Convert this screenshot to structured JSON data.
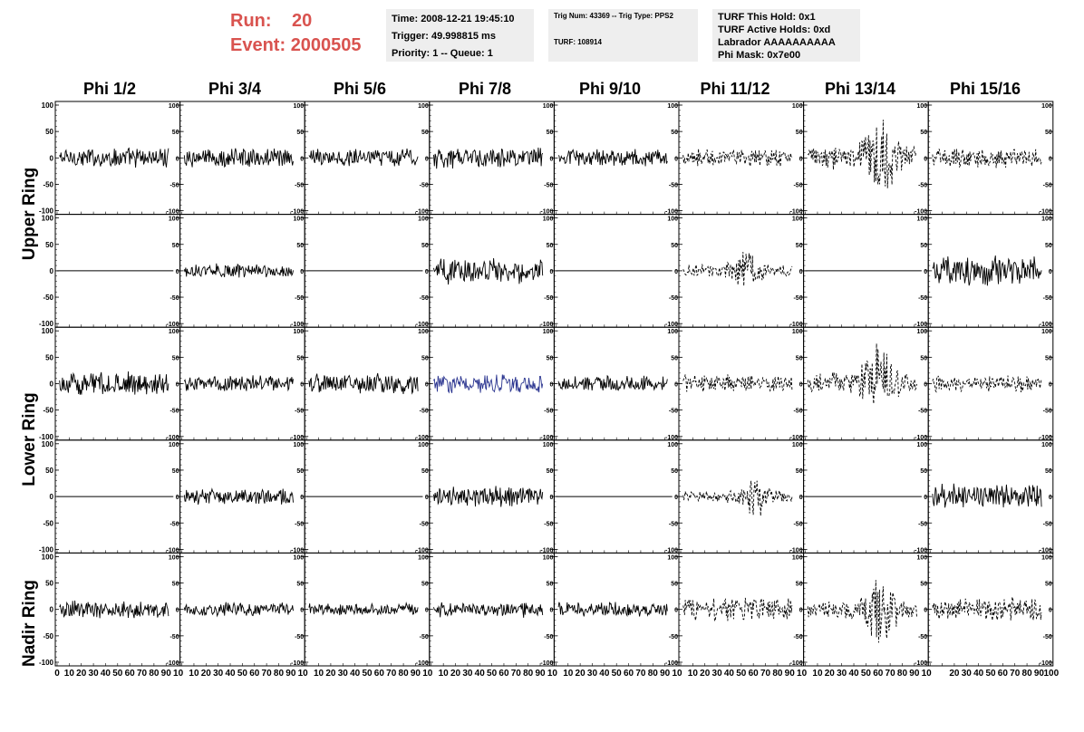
{
  "header": {
    "run_label": "Run:",
    "run_value": "20",
    "event_label": "Event:",
    "event_value": "2000505",
    "time": "Time: 2008-12-21 19:45:10",
    "trigger": "Trigger: 49.998815 ms",
    "priority": "Priority: 1 -- Queue: 1",
    "trig_num": "Trig Num: 43369 -- Trig Type: PPS2",
    "turf": "TURF: 108914",
    "turf_this_hold": "TURF This Hold: 0x1",
    "turf_active_holds": "TURF Active Holds: 0xd",
    "labrador": "Labrador AAAAAAAAAA",
    "phi_mask": "Phi Mask: 0x7e00"
  },
  "columns": [
    "Phi 1/2",
    "Phi 3/4",
    "Phi 5/6",
    "Phi 7/8",
    "Phi 9/10",
    "Phi 11/12",
    "Phi 13/14",
    "Phi 15/16"
  ],
  "row_groups": [
    "Upper Ring",
    "Lower Ring",
    "Nadir Ring"
  ],
  "chart_data": {
    "type": "line",
    "title": "",
    "grid": false,
    "xlim": [
      0,
      100
    ],
    "ylim": [
      -100,
      100
    ],
    "y_ticks": [
      100,
      50,
      0,
      -50,
      -100
    ],
    "x_ticks": [
      0,
      10,
      20,
      30,
      40,
      50,
      60,
      70,
      80,
      90,
      100
    ],
    "x_tick_labels_row": [
      "0",
      "10",
      "20",
      "30",
      "40",
      "50",
      "60",
      "70",
      "80",
      "90",
      "10"
    ],
    "x_tick_labels_last": [
      "10",
      "20",
      "30",
      "40",
      "50",
      "60",
      "70",
      "80",
      "90",
      "100"
    ],
    "colors": {
      "trace": "#000000",
      "highlight": "#2b3590"
    },
    "rows": [
      {
        "group": "Upper Ring",
        "panels": [
          {
            "amp": 18,
            "style": "solid"
          },
          {
            "amp": 17,
            "style": "solid"
          },
          {
            "amp": 16,
            "style": "solid"
          },
          {
            "amp": 18,
            "style": "solid"
          },
          {
            "amp": 15,
            "style": "solid"
          },
          {
            "amp": 16,
            "style": "dashed"
          },
          {
            "amp": 45,
            "style": "dashed",
            "burst": 62
          },
          {
            "amp": 18,
            "style": "dashed"
          }
        ]
      },
      {
        "group": "Upper Ring",
        "panels": [
          {
            "amp": 0,
            "style": "flat"
          },
          {
            "amp": 12,
            "style": "solid"
          },
          {
            "amp": 0,
            "style": "flat"
          },
          {
            "amp": 22,
            "style": "solid"
          },
          {
            "amp": 0,
            "style": "flat"
          },
          {
            "amp": 24,
            "style": "dashed",
            "burst": 55
          },
          {
            "amp": 0,
            "style": "flat"
          },
          {
            "amp": 26,
            "style": "solid"
          }
        ]
      },
      {
        "group": "Lower Ring",
        "panels": [
          {
            "amp": 20,
            "style": "solid"
          },
          {
            "amp": 14,
            "style": "solid"
          },
          {
            "amp": 18,
            "style": "solid"
          },
          {
            "amp": 16,
            "style": "solid",
            "highlight": true
          },
          {
            "amp": 14,
            "style": "solid"
          },
          {
            "amp": 15,
            "style": "dashed"
          },
          {
            "amp": 45,
            "style": "dashed",
            "burst": 60
          },
          {
            "amp": 14,
            "style": "dashed"
          }
        ]
      },
      {
        "group": "Lower Ring",
        "panels": [
          {
            "amp": 0,
            "style": "flat"
          },
          {
            "amp": 14,
            "style": "solid"
          },
          {
            "amp": 0,
            "style": "flat"
          },
          {
            "amp": 18,
            "style": "solid"
          },
          {
            "amp": 0,
            "style": "flat"
          },
          {
            "amp": 22,
            "style": "dashed",
            "burst": 60
          },
          {
            "amp": 0,
            "style": "flat"
          },
          {
            "amp": 22,
            "style": "solid"
          }
        ]
      },
      {
        "group": "Nadir Ring",
        "panels": [
          {
            "amp": 16,
            "style": "solid"
          },
          {
            "amp": 12,
            "style": "solid"
          },
          {
            "amp": 11,
            "style": "solid"
          },
          {
            "amp": 13,
            "style": "solid"
          },
          {
            "amp": 13,
            "style": "solid"
          },
          {
            "amp": 22,
            "style": "dashed"
          },
          {
            "amp": 38,
            "style": "dashed",
            "burst": 62
          },
          {
            "amp": 22,
            "style": "dashed"
          }
        ]
      }
    ]
  }
}
